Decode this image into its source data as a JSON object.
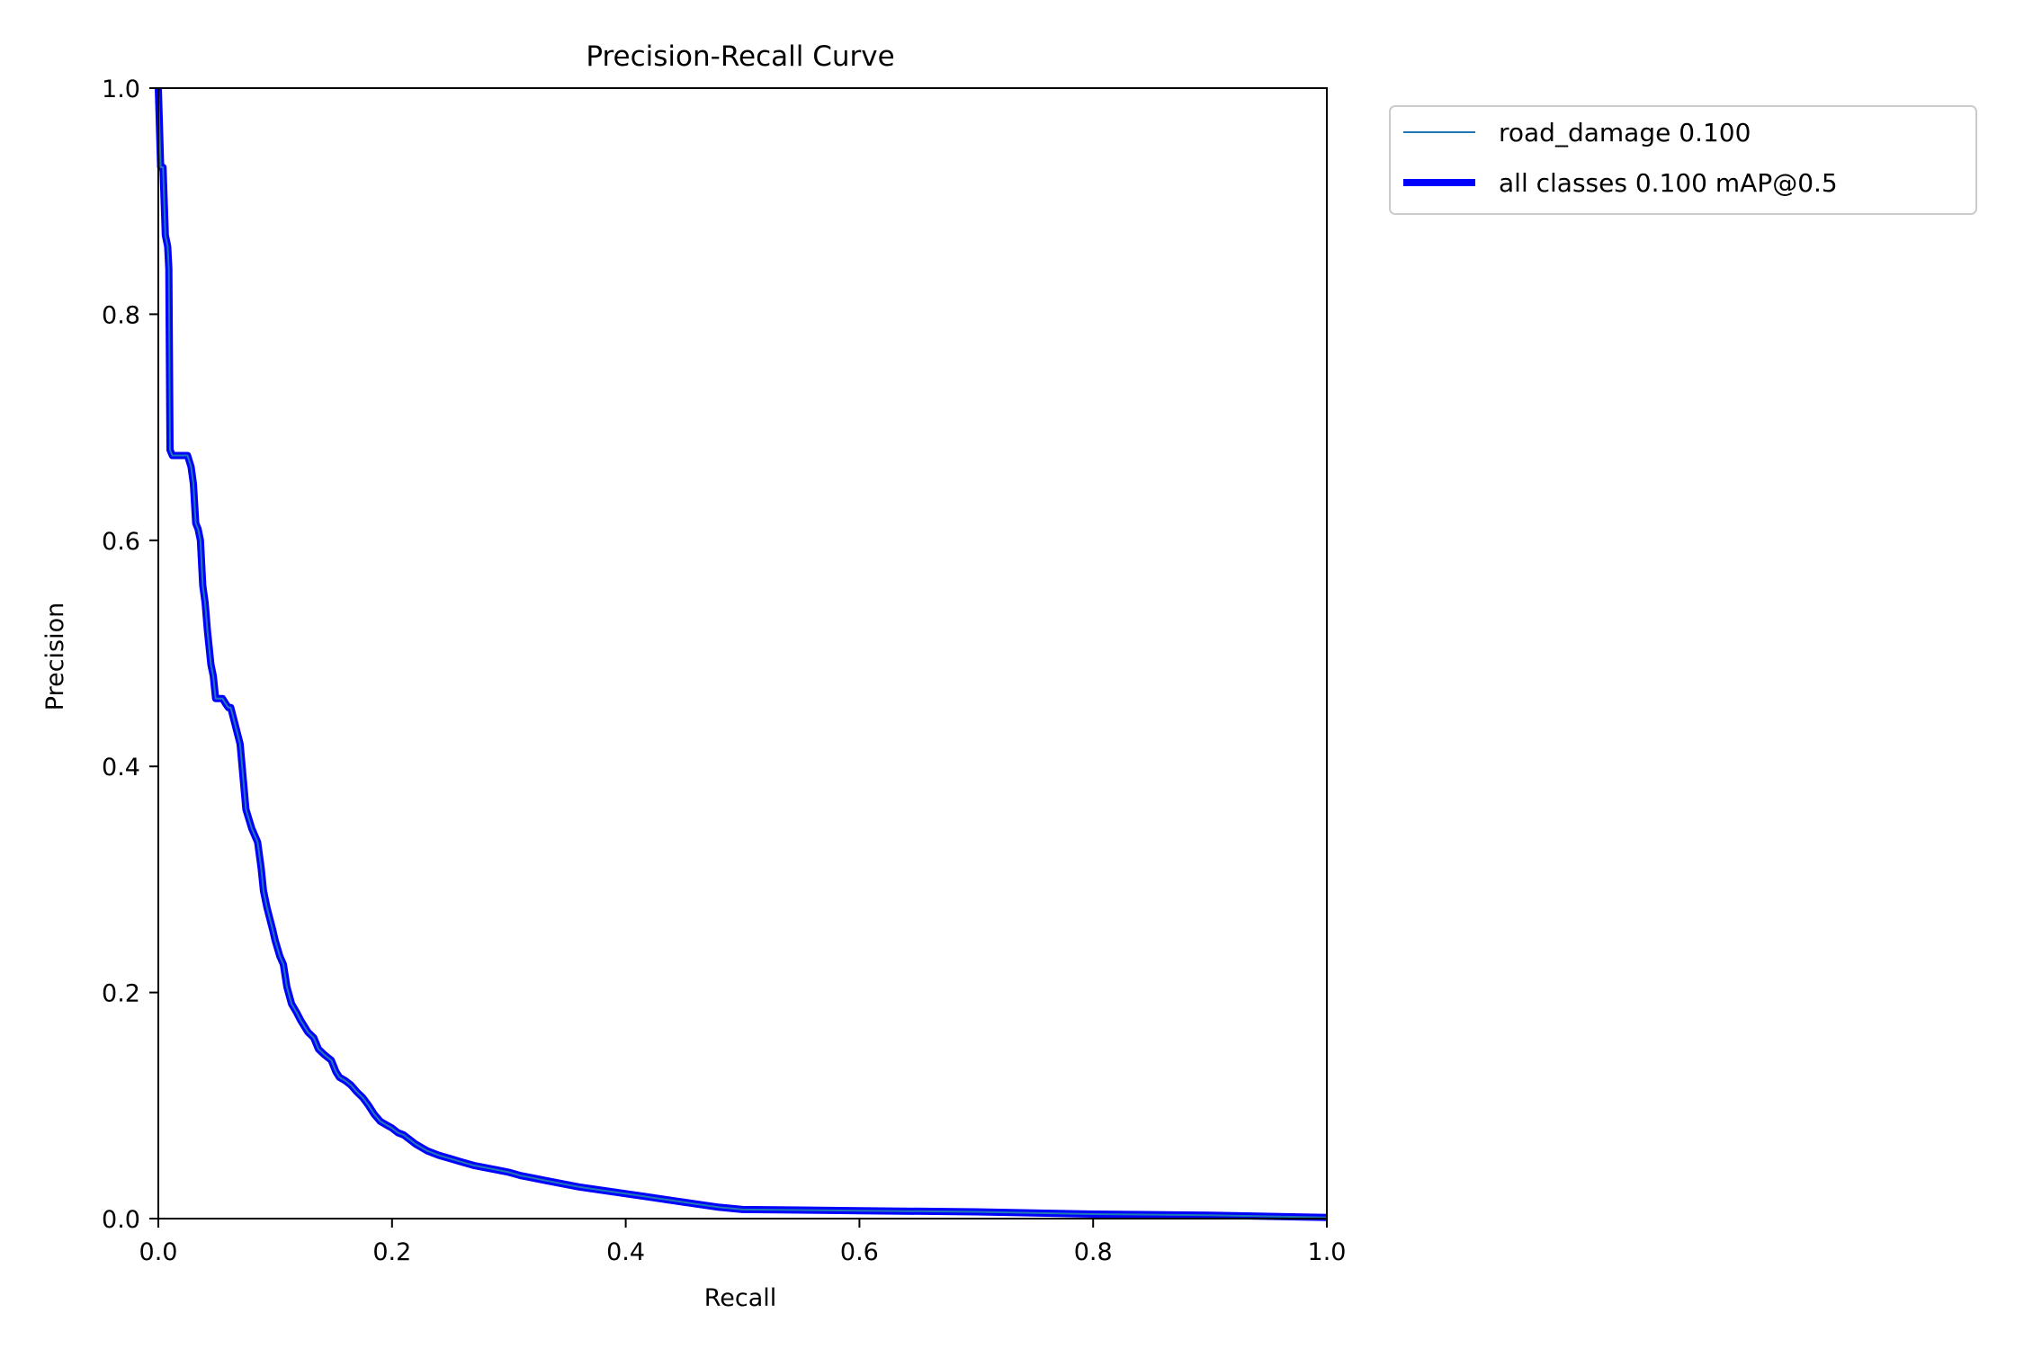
{
  "chart_data": {
    "type": "line",
    "title": "Precision-Recall Curve",
    "xlabel": "Recall",
    "ylabel": "Precision",
    "xlim": [
      0.0,
      1.0
    ],
    "ylim": [
      0.0,
      1.0
    ],
    "xticks": [
      "0.0",
      "0.2",
      "0.4",
      "0.6",
      "0.8",
      "1.0"
    ],
    "yticks": [
      "0.0",
      "0.2",
      "0.4",
      "0.6",
      "0.8",
      "1.0"
    ],
    "grid": false,
    "legend_position": "outside-top-right",
    "series": [
      {
        "name": "road_damage 0.100",
        "color": "#1f77b4",
        "style": "thin",
        "x": [
          0.0,
          0.002,
          0.004,
          0.006,
          0.008,
          0.009,
          0.01,
          0.012,
          0.015,
          0.02,
          0.025,
          0.028,
          0.03,
          0.032,
          0.034,
          0.036,
          0.038,
          0.04,
          0.042,
          0.045,
          0.047,
          0.049,
          0.052,
          0.055,
          0.058,
          0.06,
          0.062,
          0.065,
          0.07,
          0.075,
          0.08,
          0.085,
          0.088,
          0.09,
          0.093,
          0.095,
          0.098,
          0.1,
          0.104,
          0.107,
          0.11,
          0.114,
          0.118,
          0.122,
          0.128,
          0.133,
          0.137,
          0.142,
          0.148,
          0.152,
          0.155,
          0.16,
          0.165,
          0.17,
          0.175,
          0.18,
          0.185,
          0.19,
          0.195,
          0.2,
          0.205,
          0.21,
          0.215,
          0.22,
          0.225,
          0.23,
          0.24,
          0.25,
          0.26,
          0.27,
          0.28,
          0.29,
          0.3,
          0.31,
          0.32,
          0.33,
          0.34,
          0.35,
          0.36,
          0.38,
          0.4,
          0.42,
          0.44,
          0.46,
          0.48,
          0.5,
          0.6,
          0.7,
          0.8,
          0.9,
          1.0
        ],
        "y": [
          1.0,
          0.93,
          0.93,
          0.87,
          0.86,
          0.84,
          0.68,
          0.675,
          0.675,
          0.675,
          0.675,
          0.665,
          0.65,
          0.615,
          0.61,
          0.6,
          0.56,
          0.545,
          0.52,
          0.49,
          0.48,
          0.46,
          0.46,
          0.46,
          0.455,
          0.452,
          0.452,
          0.44,
          0.42,
          0.362,
          0.345,
          0.333,
          0.31,
          0.29,
          0.275,
          0.267,
          0.255,
          0.246,
          0.232,
          0.225,
          0.205,
          0.19,
          0.183,
          0.175,
          0.165,
          0.16,
          0.15,
          0.145,
          0.14,
          0.13,
          0.125,
          0.122,
          0.118,
          0.112,
          0.107,
          0.1,
          0.092,
          0.086,
          0.083,
          0.08,
          0.076,
          0.074,
          0.07,
          0.066,
          0.063,
          0.06,
          0.056,
          0.053,
          0.05,
          0.047,
          0.045,
          0.043,
          0.041,
          0.038,
          0.036,
          0.034,
          0.032,
          0.03,
          0.028,
          0.025,
          0.022,
          0.019,
          0.016,
          0.013,
          0.01,
          0.008,
          0.007,
          0.006,
          0.004,
          0.003,
          0.001
        ]
      },
      {
        "name": "all classes 0.100 mAP@0.5",
        "color": "#0000ff",
        "style": "thick"
      }
    ]
  }
}
